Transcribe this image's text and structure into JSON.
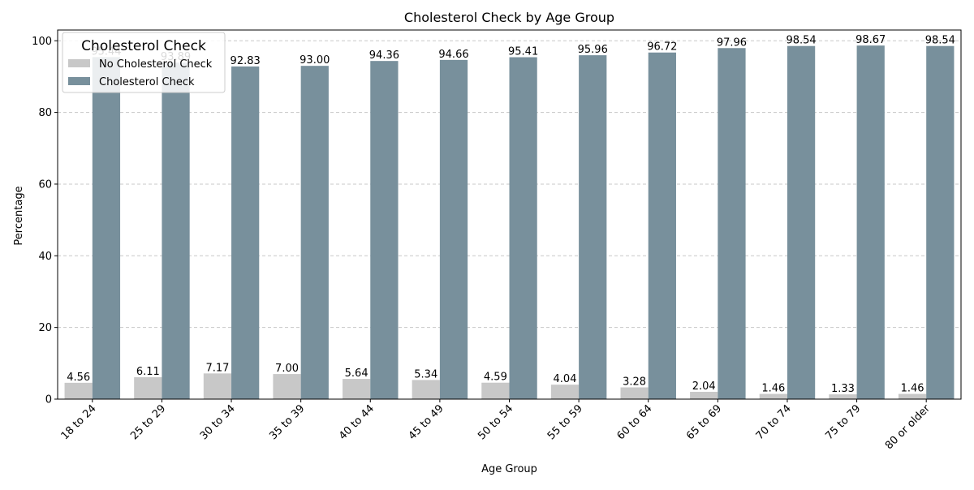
{
  "chart_data": {
    "type": "bar",
    "title": "Cholesterol Check by Age Group",
    "xlabel": "Age Group",
    "ylabel": "Percentage",
    "ylim": [
      0,
      103
    ],
    "yticks": [
      0,
      20,
      40,
      60,
      80,
      100
    ],
    "grid": "y-dashed",
    "legend": {
      "title": "Cholesterol Check",
      "placement": "top-left"
    },
    "categories": [
      "18 to 24",
      "25 to 29",
      "30 to 34",
      "35 to 39",
      "40 to 44",
      "45 to 49",
      "50 to 54",
      "55 to 59",
      "60 to 64",
      "65 to 69",
      "70 to 74",
      "75 to 79",
      "80 or older"
    ],
    "series": [
      {
        "name": "No Cholesterol Check",
        "color": "#c8c8c8",
        "values": [
          4.56,
          6.11,
          7.17,
          7.0,
          5.64,
          5.34,
          4.59,
          4.04,
          3.28,
          2.04,
          1.46,
          1.33,
          1.46
        ],
        "labels": [
          "4.56",
          "6.11",
          "7.17",
          "7.00",
          "5.64",
          "5.34",
          "4.59",
          "4.04",
          "3.28",
          "2.04",
          "1.46",
          "1.33",
          "1.46"
        ]
      },
      {
        "name": "Cholesterol Check",
        "color": "#78909c",
        "values": [
          95.44,
          93.89,
          92.83,
          93.0,
          94.36,
          94.66,
          95.41,
          95.96,
          96.72,
          97.96,
          98.54,
          98.67,
          98.54
        ],
        "labels": [
          "95.44",
          "93.89",
          "92.83",
          "93.00",
          "94.36",
          "94.66",
          "95.41",
          "95.96",
          "96.72",
          "97.96",
          "98.54",
          "98.67",
          "98.54"
        ]
      }
    ]
  }
}
